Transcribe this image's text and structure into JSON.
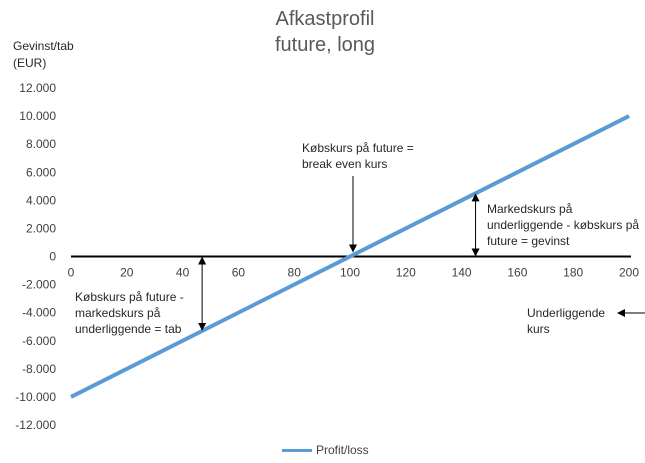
{
  "chart_data": {
    "type": "line",
    "title": "Afkastprofil",
    "subtitle": "future, long",
    "ylabel": "Gevinst/tab\n(EUR)",
    "xlabel": "",
    "x": [
      0,
      200
    ],
    "series": [
      {
        "name": "Profit/loss",
        "x": [
          0,
          200
        ],
        "values": [
          -10000,
          10000
        ],
        "color": "#5b9bd5"
      }
    ],
    "xlim": [
      0,
      200
    ],
    "ylim": [
      -12000,
      12000
    ],
    "xticks": [
      0,
      20,
      40,
      60,
      80,
      100,
      120,
      140,
      160,
      180,
      200
    ],
    "xtick_labels": [
      "0",
      "20",
      "40",
      "60",
      "80",
      "100",
      "120",
      "140",
      "160",
      "180",
      "200"
    ],
    "yticks": [
      12000,
      10000,
      8000,
      6000,
      4000,
      2000,
      0,
      -2000,
      -4000,
      -6000,
      -8000,
      -10000,
      -12000
    ],
    "ytick_labels": [
      "12.000",
      "10.000",
      "8.000",
      "6.000",
      "4.000",
      "2.000",
      "0",
      "-2.000",
      "-4.000",
      "-6.000",
      "-8.000",
      "-10.000",
      "-12.000"
    ],
    "grid": false,
    "legend": "bottom",
    "annotations": [
      {
        "text": "Købskurs på future =\nbreak even kurs"
      },
      {
        "text": "Markedskurs på\nunderliggende - købskurs på\nfuture = gevinst"
      },
      {
        "text": "Købskurs på future -\nmarkedskurs på\nunderliggende = tab"
      },
      {
        "text": "Underliggende\nkurs"
      }
    ]
  }
}
